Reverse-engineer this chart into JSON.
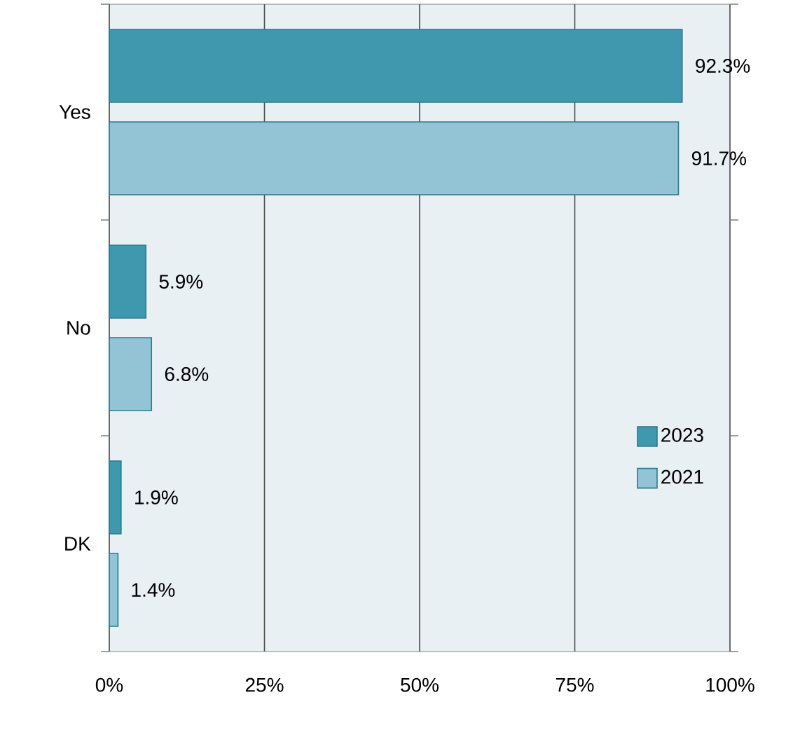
{
  "chart_data": {
    "type": "bar",
    "orientation": "horizontal",
    "categories": [
      "Yes",
      "No",
      "DK"
    ],
    "series": [
      {
        "name": "2023",
        "color": "#3f98ae",
        "values": [
          92.3,
          5.9,
          1.9
        ],
        "value_labels": [
          "92.3%",
          "5.9%",
          "1.9%"
        ]
      },
      {
        "name": "2021",
        "color": "#93c4d5",
        "values": [
          91.7,
          6.8,
          1.4
        ],
        "value_labels": [
          "91.7%",
          "6.8%",
          "1.4%"
        ]
      }
    ],
    "xlim": [
      0,
      100
    ],
    "xticks": [
      {
        "value": 0,
        "label": "0%"
      },
      {
        "value": 25,
        "label": "25%"
      },
      {
        "value": 50,
        "label": "50%"
      },
      {
        "value": 75,
        "label": "75%"
      },
      {
        "value": 100,
        "label": "100%"
      }
    ],
    "grid": "x",
    "legend": "bottom right"
  }
}
